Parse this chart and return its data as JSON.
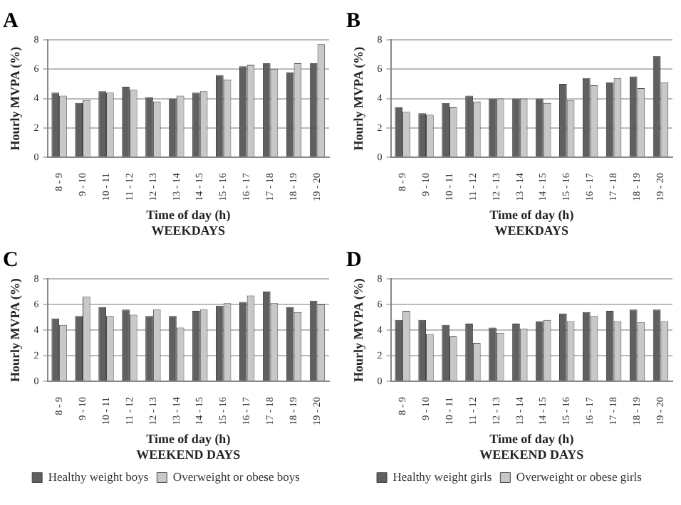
{
  "chart_data": [
    {
      "type": "bar",
      "title": "A",
      "xlabel": "Time of day (h)",
      "ylabel": "Hourly MVPA (%)",
      "annotations": [
        "WEEKDAYS"
      ],
      "categories": [
        "8 - 9",
        "9 - 10",
        "10 - 11",
        "11 - 12",
        "12 - 13",
        "13 - 14",
        "14 - 15",
        "15 - 16",
        "16 - 17",
        "17 - 18",
        "18 - 19",
        "19 - 20"
      ],
      "series": [
        {
          "color": "#606060",
          "values": [
            4.4,
            3.7,
            4.5,
            4.8,
            4.1,
            4.0,
            4.4,
            5.6,
            6.2,
            6.4,
            5.8,
            6.4
          ]
        },
        {
          "color": "#c8c8c8",
          "values": [
            4.2,
            3.9,
            4.4,
            4.6,
            3.8,
            4.2,
            4.5,
            5.3,
            6.3,
            6.0,
            6.4,
            7.7
          ]
        }
      ],
      "ylim": [
        0,
        8
      ],
      "yticks": [
        0,
        2,
        4,
        6,
        8
      ],
      "grid": "y"
    },
    {
      "type": "bar",
      "title": "B",
      "xlabel": "Time of day (h)",
      "ylabel": "Hourly MVPA (%)",
      "annotations": [
        "WEEKDAYS"
      ],
      "categories": [
        "8 - 9",
        "9 - 10",
        "10 - 11",
        "11 - 12",
        "12 - 13",
        "13 - 14",
        "14 - 15",
        "15 - 16",
        "16 - 17",
        "17 - 18",
        "18 - 19",
        "19 - 20"
      ],
      "series": [
        {
          "color": "#606060",
          "values": [
            3.4,
            3.0,
            3.7,
            4.2,
            4.0,
            4.0,
            4.0,
            5.0,
            5.4,
            5.1,
            5.5,
            6.9
          ]
        },
        {
          "color": "#c8c8c8",
          "values": [
            3.1,
            2.9,
            3.4,
            3.8,
            4.0,
            4.0,
            3.7,
            3.9,
            4.9,
            5.4,
            4.7,
            5.1
          ]
        }
      ],
      "ylim": [
        0,
        8
      ],
      "yticks": [
        0,
        2,
        4,
        6,
        8
      ],
      "grid": "y"
    },
    {
      "type": "bar",
      "title": "C",
      "xlabel": "Time of day (h)",
      "ylabel": "Hourly MVPA (%)",
      "annotations": [
        "WEEKEND DAYS"
      ],
      "categories": [
        "8 - 9",
        "9 - 10",
        "10 - 11",
        "11 - 12",
        "12 - 13",
        "13 - 14",
        "14 - 15",
        "15 - 16",
        "16 - 17",
        "17 - 18",
        "18 - 19",
        "19 - 20"
      ],
      "series": [
        {
          "name": "Healthy weight boys",
          "color": "#606060",
          "values": [
            4.9,
            5.1,
            5.8,
            5.6,
            5.1,
            5.1,
            5.5,
            5.9,
            6.2,
            7.0,
            5.8,
            6.3
          ]
        },
        {
          "name": "Overweight or obese boys",
          "color": "#c8c8c8",
          "values": [
            4.4,
            6.6,
            5.1,
            5.2,
            5.6,
            4.2,
            5.6,
            6.1,
            6.7,
            6.1,
            5.4,
            6.0
          ]
        }
      ],
      "ylim": [
        0,
        8
      ],
      "yticks": [
        0,
        2,
        4,
        6,
        8
      ],
      "grid": "y",
      "legend": "bottom"
    },
    {
      "type": "bar",
      "title": "D",
      "xlabel": "Time of day (h)",
      "ylabel": "Hourly MVPA (%)",
      "annotations": [
        "WEEKEND DAYS"
      ],
      "categories": [
        "8 - 9",
        "9 - 10",
        "10 - 11",
        "11 - 12",
        "12 - 13",
        "13 - 14",
        "14 - 15",
        "15 - 16",
        "16 - 17",
        "17 - 18",
        "18 - 19",
        "19 - 20"
      ],
      "series": [
        {
          "name": "Healthy weight girls",
          "color": "#606060",
          "values": [
            4.8,
            4.8,
            4.4,
            4.5,
            4.2,
            4.5,
            4.7,
            5.3,
            5.4,
            5.5,
            5.6,
            5.6
          ]
        },
        {
          "name": "Overweight or obese girls",
          "color": "#c8c8c8",
          "values": [
            5.5,
            3.7,
            3.5,
            3.0,
            3.8,
            4.1,
            4.8,
            4.7,
            5.1,
            4.7,
            4.6,
            4.7
          ]
        }
      ],
      "ylim": [
        0,
        8
      ],
      "yticks": [
        0,
        2,
        4,
        6,
        8
      ],
      "grid": "y",
      "legend": "bottom"
    }
  ]
}
